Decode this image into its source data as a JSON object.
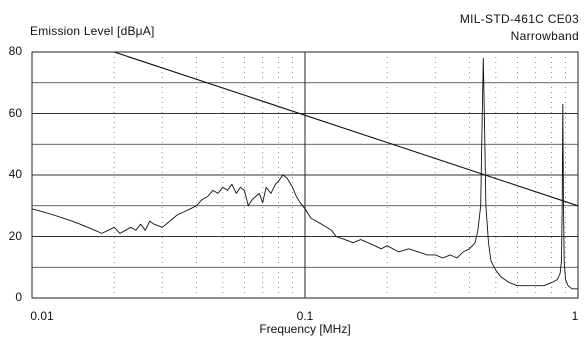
{
  "chart_data": {
    "type": "line",
    "title": "MIL-STD-461C CE03",
    "subtitle": "Narrowband",
    "ylabel": "Emission Level [dBμA]",
    "xlabel": "Frequency [MHz]",
    "xscale": "log",
    "xlim": [
      0.01,
      1
    ],
    "ylim": [
      0,
      80
    ],
    "yticks": [
      "0",
      "20",
      "40",
      "60",
      "80"
    ],
    "xticks": [
      "0.01",
      "0.1",
      "1"
    ],
    "grid": true,
    "series": [
      {
        "kind": "limit",
        "x": [
          0.02,
          1
        ],
        "y": [
          80,
          30
        ]
      },
      {
        "kind": "measured",
        "x": [
          0.01,
          0.011,
          0.012,
          0.013,
          0.014,
          0.015,
          0.016,
          0.017,
          0.018,
          0.019,
          0.02,
          0.021,
          0.022,
          0.023,
          0.024,
          0.025,
          0.026,
          0.027,
          0.028,
          0.03,
          0.032,
          0.034,
          0.036,
          0.038,
          0.04,
          0.042,
          0.044,
          0.046,
          0.048,
          0.05,
          0.052,
          0.054,
          0.056,
          0.058,
          0.06,
          0.062,
          0.064,
          0.066,
          0.068,
          0.07,
          0.072,
          0.075,
          0.078,
          0.08,
          0.083,
          0.086,
          0.09,
          0.093,
          0.096,
          0.1,
          0.105,
          0.11,
          0.115,
          0.12,
          0.125,
          0.13,
          0.14,
          0.15,
          0.16,
          0.17,
          0.18,
          0.19,
          0.2,
          0.22,
          0.24,
          0.26,
          0.28,
          0.3,
          0.32,
          0.34,
          0.36,
          0.38,
          0.4,
          0.42,
          0.43,
          0.44,
          0.445,
          0.45,
          0.455,
          0.46,
          0.47,
          0.48,
          0.5,
          0.52,
          0.54,
          0.56,
          0.6,
          0.65,
          0.7,
          0.75,
          0.8,
          0.84,
          0.86,
          0.87,
          0.875,
          0.88,
          0.885,
          0.89,
          0.9,
          0.92,
          0.95,
          0.98,
          1.0
        ],
        "y": [
          29,
          28,
          27,
          26,
          25,
          24,
          23,
          22,
          21,
          22,
          23,
          21,
          22,
          23,
          22,
          24,
          22,
          25,
          24,
          23,
          25,
          27,
          28,
          29,
          30,
          32,
          33,
          35,
          34,
          36,
          35,
          37,
          34,
          36,
          35,
          30,
          32,
          33,
          34,
          31,
          36,
          34,
          37,
          38,
          40,
          39,
          36,
          33,
          31,
          29,
          26,
          25,
          24,
          23,
          22,
          20,
          19,
          18,
          19,
          18,
          17,
          16,
          17,
          15,
          16,
          15,
          14,
          14,
          13,
          14,
          13,
          15,
          16,
          18,
          22,
          30,
          55,
          78,
          55,
          30,
          18,
          12,
          9,
          7,
          6,
          5,
          4,
          4,
          4,
          4,
          5,
          6,
          8,
          12,
          30,
          63,
          30,
          12,
          6,
          4,
          3,
          3,
          3
        ]
      }
    ]
  }
}
